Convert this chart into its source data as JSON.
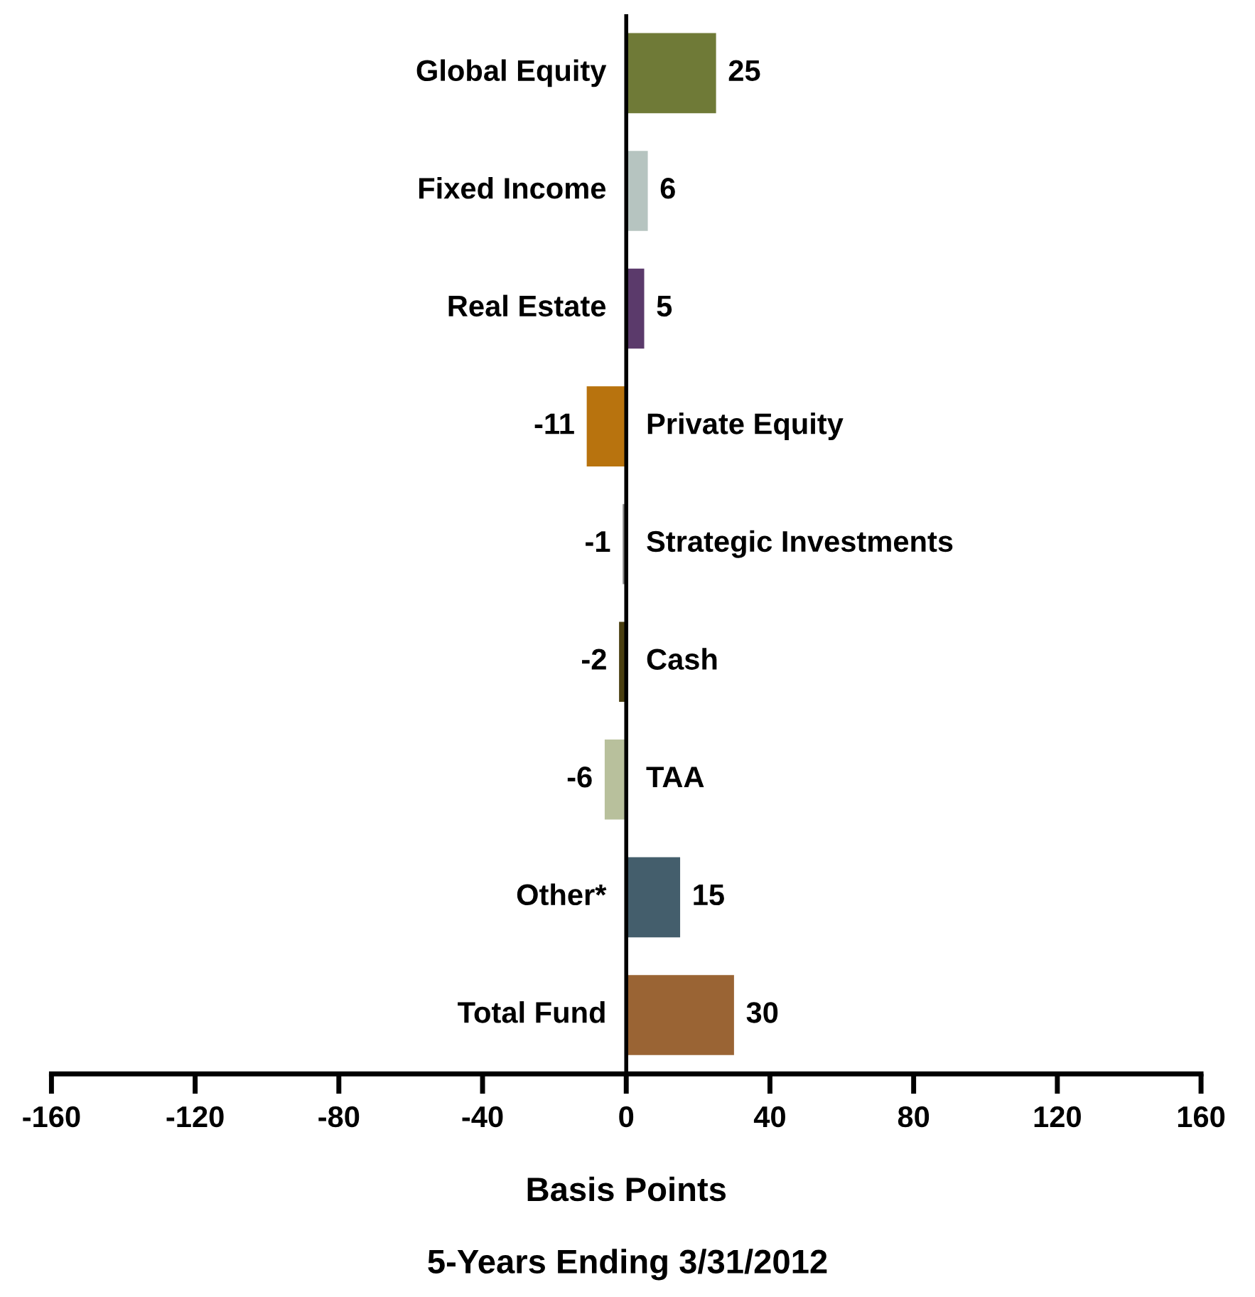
{
  "chart_data": {
    "type": "bar",
    "orientation": "horizontal",
    "title": "5-Years Ending 3/31/2012",
    "xlabel": "Basis Points",
    "categories": [
      "Global Equity",
      "Fixed Income",
      "Real Estate",
      "Private Equity",
      "Strategic Investments",
      "Cash",
      "TAA",
      "Other*",
      "Total Fund"
    ],
    "values": [
      25,
      6,
      5,
      -11,
      -1,
      -2,
      -6,
      15,
      30
    ],
    "colors": [
      "#6f7a37",
      "#b6c4c0",
      "#5b3a6b",
      "#b8730e",
      "#8a8a8a",
      "#4a3f10",
      "#b8c09c",
      "#445e6c",
      "#9a6434"
    ],
    "xlim": [
      -160,
      160
    ],
    "xticks": [
      -160,
      -120,
      -80,
      -40,
      0,
      40,
      80,
      120,
      160
    ],
    "data_labels": true,
    "grid": false,
    "legend": false
  }
}
